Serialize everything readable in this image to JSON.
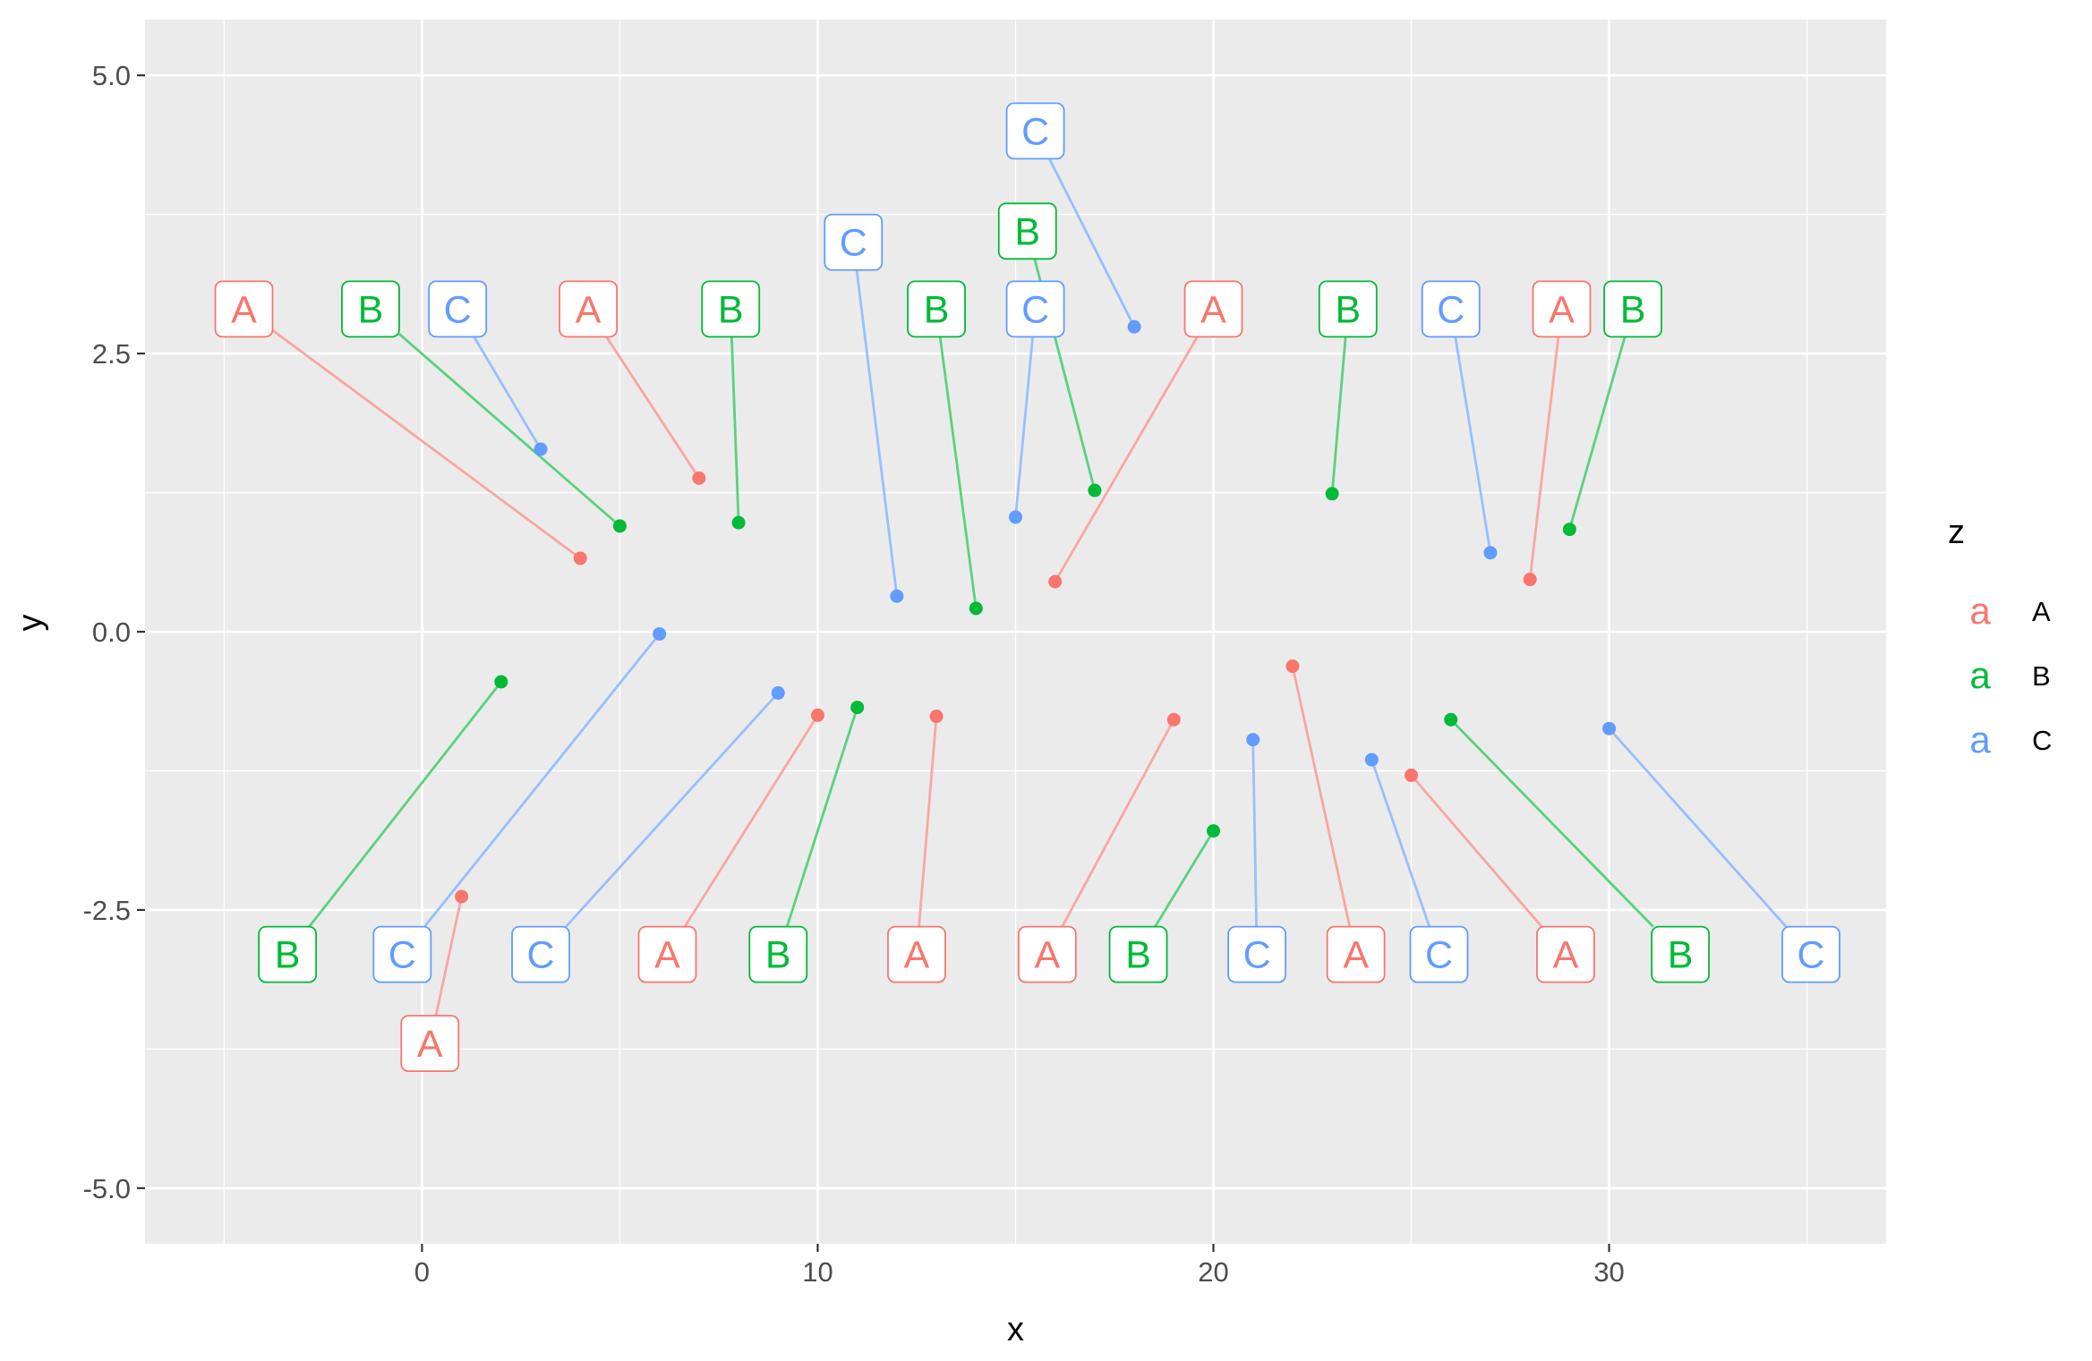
{
  "chart_data": {
    "type": "scatter",
    "title": "",
    "xlabel": "x",
    "ylabel": "y",
    "xlim": [
      -7,
      37
    ],
    "ylim": [
      -5.5,
      5.5
    ],
    "x_ticks": [
      0,
      10,
      20,
      30
    ],
    "y_ticks": [
      -5.0,
      -2.5,
      0.0,
      2.5,
      5.0
    ],
    "x_tick_labels": [
      "0",
      "10",
      "20",
      "30"
    ],
    "y_tick_labels": [
      "-5.0",
      "-2.5",
      "0.0",
      "2.5",
      "5.0"
    ],
    "grid": true,
    "legend": {
      "title": "z",
      "position": "right",
      "key_glyph": "a",
      "entries": [
        {
          "label": "A",
          "color": "#F8766D"
        },
        {
          "label": "B",
          "color": "#00BA38"
        },
        {
          "label": "C",
          "color": "#619CFF"
        }
      ]
    },
    "colors": {
      "A": "#F8766D",
      "B": "#00BA38",
      "C": "#619CFF"
    },
    "points": [
      {
        "x": 1,
        "y": -2.38,
        "z": "A",
        "lx": 0.2,
        "ly": -3.7
      },
      {
        "x": 2,
        "y": -0.45,
        "z": "B",
        "lx": -3.4,
        "ly": -2.9
      },
      {
        "x": 3,
        "y": 1.64,
        "z": "C",
        "lx": 0.9,
        "ly": 2.9
      },
      {
        "x": 4,
        "y": 0.66,
        "z": "A",
        "lx": -4.5,
        "ly": 2.9
      },
      {
        "x": 5,
        "y": 0.95,
        "z": "B",
        "lx": -1.3,
        "ly": 2.9
      },
      {
        "x": 6,
        "y": -0.02,
        "z": "C",
        "lx": -0.5,
        "ly": -2.9
      },
      {
        "x": 7,
        "y": 1.38,
        "z": "A",
        "lx": 4.2,
        "ly": 2.9
      },
      {
        "x": 8,
        "y": 0.98,
        "z": "B",
        "lx": 7.8,
        "ly": 2.9
      },
      {
        "x": 9,
        "y": -0.55,
        "z": "C",
        "lx": 3.0,
        "ly": -2.9
      },
      {
        "x": 10,
        "y": -0.75,
        "z": "A",
        "lx": 6.2,
        "ly": -2.9
      },
      {
        "x": 11,
        "y": -0.68,
        "z": "B",
        "lx": 9.0,
        "ly": -2.9
      },
      {
        "x": 12,
        "y": 0.32,
        "z": "C",
        "lx": 10.9,
        "ly": 3.5
      },
      {
        "x": 13,
        "y": -0.76,
        "z": "A",
        "lx": 12.5,
        "ly": -2.9
      },
      {
        "x": 14,
        "y": 0.21,
        "z": "B",
        "lx": 13.0,
        "ly": 2.9
      },
      {
        "x": 15,
        "y": 1.03,
        "z": "C",
        "lx": 15.5,
        "ly": 2.9
      },
      {
        "x": 16,
        "y": 0.45,
        "z": "A",
        "lx": 20.0,
        "ly": 2.9
      },
      {
        "x": 17,
        "y": 1.27,
        "z": "B",
        "lx": 15.3,
        "ly": 3.6
      },
      {
        "x": 18,
        "y": 2.74,
        "z": "C",
        "lx": 15.5,
        "ly": 4.5
      },
      {
        "x": 19,
        "y": -0.79,
        "z": "A",
        "lx": 15.8,
        "ly": -2.9
      },
      {
        "x": 20,
        "y": -1.79,
        "z": "B",
        "lx": 18.1,
        "ly": -2.9
      },
      {
        "x": 21,
        "y": -0.97,
        "z": "C",
        "lx": 21.1,
        "ly": -2.9
      },
      {
        "x": 22,
        "y": -0.31,
        "z": "A",
        "lx": 23.6,
        "ly": -2.9
      },
      {
        "x": 23,
        "y": 1.24,
        "z": "B",
        "lx": 23.4,
        "ly": 2.9
      },
      {
        "x": 24,
        "y": -1.15,
        "z": "C",
        "lx": 25.7,
        "ly": -2.9
      },
      {
        "x": 25,
        "y": -1.29,
        "z": "A",
        "lx": 28.9,
        "ly": -2.9
      },
      {
        "x": 26,
        "y": -0.79,
        "z": "B",
        "lx": 31.8,
        "ly": -2.9
      },
      {
        "x": 27,
        "y": 0.71,
        "z": "C",
        "lx": 26.0,
        "ly": 2.9
      },
      {
        "x": 28,
        "y": 0.47,
        "z": "A",
        "lx": 28.8,
        "ly": 2.9
      },
      {
        "x": 29,
        "y": 0.92,
        "z": "B",
        "lx": 30.6,
        "ly": 2.9
      },
      {
        "x": 30,
        "y": -0.87,
        "z": "C",
        "lx": 35.1,
        "ly": -2.9
      }
    ]
  }
}
